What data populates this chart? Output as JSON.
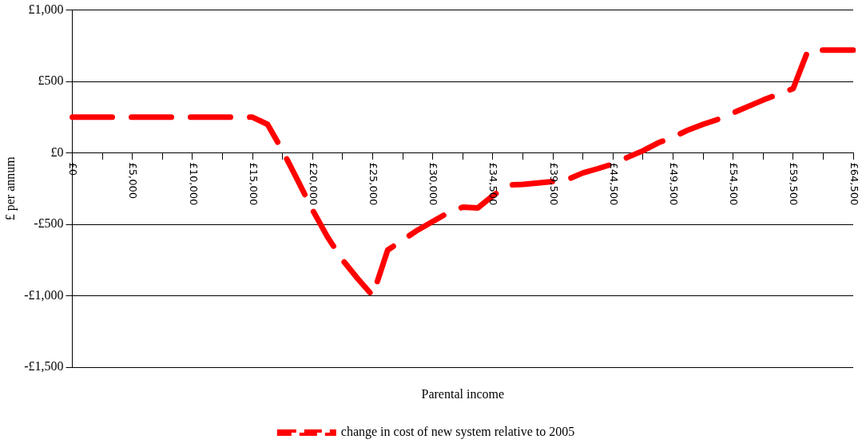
{
  "chart_data": {
    "type": "line",
    "xlabel": "Parental income",
    "ylabel": "£ per annum",
    "categories": [
      "£0",
      null,
      null,
      null,
      "£5,000",
      null,
      null,
      null,
      "£10,000",
      null,
      null,
      null,
      "£15,000",
      null,
      null,
      null,
      "£20,000",
      null,
      null,
      null,
      "£25,000",
      null,
      null,
      null,
      "£30,000",
      null,
      null,
      null,
      "£34,500",
      null,
      null,
      null,
      "£39,500",
      null,
      null,
      null,
      "£44,500",
      null,
      null,
      null,
      "£49,500",
      null,
      null,
      null,
      "£54,500",
      null,
      null,
      null,
      "£59,500",
      null,
      null,
      null,
      "£64,500"
    ],
    "series": [
      {
        "name": "change in cost of new system relative to 2005",
        "color": "#ff0000",
        "values": [
          250,
          250,
          250,
          250,
          250,
          250,
          250,
          250,
          250,
          250,
          250,
          250,
          250,
          200,
          15,
          -190,
          -400,
          -590,
          -750,
          -880,
          -1000,
          -680,
          -610,
          -540,
          -480,
          -420,
          -380,
          -385,
          -300,
          -225,
          -220,
          -210,
          -200,
          -185,
          -140,
          -110,
          -77,
          -30,
          15,
          70,
          110,
          160,
          200,
          235,
          280,
          325,
          370,
          410,
          450,
          720,
          720,
          720,
          720
        ]
      }
    ],
    "ylim": [
      -1500,
      1000
    ],
    "yticks": [
      {
        "value": -1500,
        "label": "-£1,500"
      },
      {
        "value": -1000,
        "label": "-£1,000"
      },
      {
        "value": -500,
        "label": "-£500"
      },
      {
        "value": 0,
        "label": "£0"
      },
      {
        "value": 500,
        "label": "£500"
      },
      {
        "value": 1000,
        "label": "£1,000"
      }
    ],
    "grid": "y",
    "legend": "bottom",
    "line_style": "dashed",
    "marker": "none"
  }
}
